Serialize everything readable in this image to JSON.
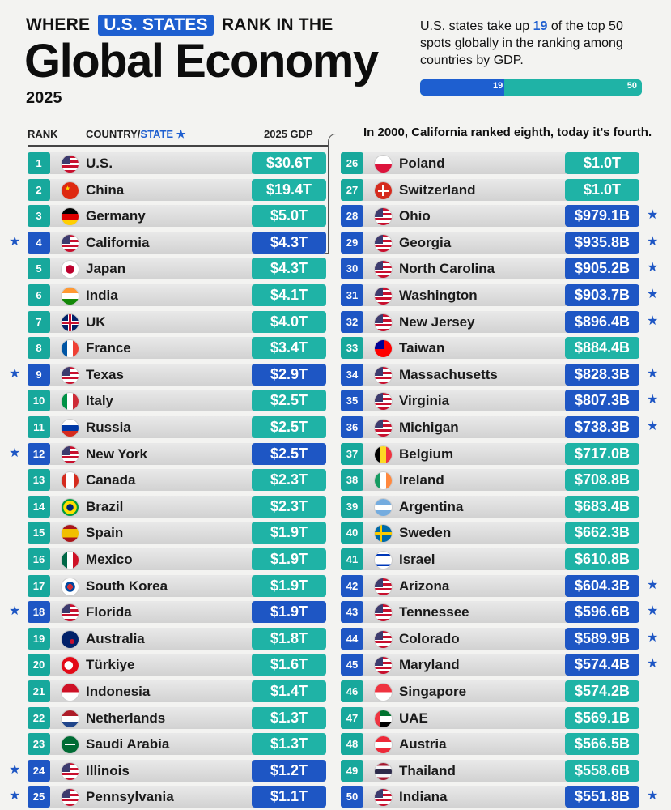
{
  "header": {
    "kicker_pre": "WHERE",
    "kicker_pill": "U.S. STATES",
    "kicker_post": "RANK IN THE",
    "title": "Global Economy",
    "year": "2025",
    "intro_pre": "U.S. states take up",
    "intro_highlight": "19",
    "intro_post": "of the top 50 spots globally in the ranking among countries by GDP.",
    "bar": {
      "states": 19,
      "total": 50,
      "states_label": "19",
      "total_label": "50"
    }
  },
  "columns": {
    "rank": "RANK",
    "country": "COUNTRY/",
    "state": "STATE",
    "star": "★",
    "gdp": "2025 GDP"
  },
  "callout": "In 2000, California ranked eighth, today it's fourth.",
  "star_symbol": "★",
  "colors": {
    "country": "#1fb3a6",
    "state": "#1e56c4",
    "accent": "#1e5fd0"
  },
  "chart_data": {
    "type": "table",
    "title": "Global Economy",
    "columns": [
      "RANK",
      "COUNTRY/STATE",
      "2025 GDP"
    ],
    "rows": [
      {
        "rank": "1",
        "name": "U.S.",
        "gdp": "$30.6T",
        "state": false,
        "flag": "us"
      },
      {
        "rank": "2",
        "name": "China",
        "gdp": "$19.4T",
        "state": false,
        "flag": "cn"
      },
      {
        "rank": "3",
        "name": "Germany",
        "gdp": "$5.0T",
        "state": false,
        "flag": "de"
      },
      {
        "rank": "4",
        "name": "California",
        "gdp": "$4.3T",
        "state": true,
        "flag": "us"
      },
      {
        "rank": "5",
        "name": "Japan",
        "gdp": "$4.3T",
        "state": false,
        "flag": "jp"
      },
      {
        "rank": "6",
        "name": "India",
        "gdp": "$4.1T",
        "state": false,
        "flag": "in"
      },
      {
        "rank": "7",
        "name": "UK",
        "gdp": "$4.0T",
        "state": false,
        "flag": "uk"
      },
      {
        "rank": "8",
        "name": "France",
        "gdp": "$3.4T",
        "state": false,
        "flag": "fr"
      },
      {
        "rank": "9",
        "name": "Texas",
        "gdp": "$2.9T",
        "state": true,
        "flag": "us"
      },
      {
        "rank": "10",
        "name": "Italy",
        "gdp": "$2.5T",
        "state": false,
        "flag": "it"
      },
      {
        "rank": "11",
        "name": "Russia",
        "gdp": "$2.5T",
        "state": false,
        "flag": "ru"
      },
      {
        "rank": "12",
        "name": "New York",
        "gdp": "$2.5T",
        "state": true,
        "flag": "us"
      },
      {
        "rank": "13",
        "name": "Canada",
        "gdp": "$2.3T",
        "state": false,
        "flag": "ca"
      },
      {
        "rank": "14",
        "name": "Brazil",
        "gdp": "$2.3T",
        "state": false,
        "flag": "br"
      },
      {
        "rank": "15",
        "name": "Spain",
        "gdp": "$1.9T",
        "state": false,
        "flag": "es"
      },
      {
        "rank": "16",
        "name": "Mexico",
        "gdp": "$1.9T",
        "state": false,
        "flag": "mx"
      },
      {
        "rank": "17",
        "name": "South Korea",
        "gdp": "$1.9T",
        "state": false,
        "flag": "kr"
      },
      {
        "rank": "18",
        "name": "Florida",
        "gdp": "$1.9T",
        "state": true,
        "flag": "us"
      },
      {
        "rank": "19",
        "name": "Australia",
        "gdp": "$1.8T",
        "state": false,
        "flag": "au"
      },
      {
        "rank": "20",
        "name": "Türkiye",
        "gdp": "$1.6T",
        "state": false,
        "flag": "tr"
      },
      {
        "rank": "21",
        "name": "Indonesia",
        "gdp": "$1.4T",
        "state": false,
        "flag": "id"
      },
      {
        "rank": "22",
        "name": "Netherlands",
        "gdp": "$1.3T",
        "state": false,
        "flag": "nl"
      },
      {
        "rank": "23",
        "name": "Saudi Arabia",
        "gdp": "$1.3T",
        "state": false,
        "flag": "sa"
      },
      {
        "rank": "24",
        "name": "Illinois",
        "gdp": "$1.2T",
        "state": true,
        "flag": "us"
      },
      {
        "rank": "25",
        "name": "Pennsylvania",
        "gdp": "$1.1T",
        "state": true,
        "flag": "us"
      },
      {
        "rank": "26",
        "name": "Poland",
        "gdp": "$1.0T",
        "state": false,
        "flag": "pl"
      },
      {
        "rank": "27",
        "name": "Switzerland",
        "gdp": "$1.0T",
        "state": false,
        "flag": "ch"
      },
      {
        "rank": "28",
        "name": "Ohio",
        "gdp": "$979.1B",
        "state": true,
        "flag": "us"
      },
      {
        "rank": "29",
        "name": "Georgia",
        "gdp": "$935.8B",
        "state": true,
        "flag": "us"
      },
      {
        "rank": "30",
        "name": "North Carolina",
        "gdp": "$905.2B",
        "state": true,
        "flag": "us"
      },
      {
        "rank": "31",
        "name": "Washington",
        "gdp": "$903.7B",
        "state": true,
        "flag": "us"
      },
      {
        "rank": "32",
        "name": "New Jersey",
        "gdp": "$896.4B",
        "state": true,
        "flag": "us"
      },
      {
        "rank": "33",
        "name": "Taiwan",
        "gdp": "$884.4B",
        "state": false,
        "flag": "tw"
      },
      {
        "rank": "34",
        "name": "Massachusetts",
        "gdp": "$828.3B",
        "state": true,
        "flag": "us"
      },
      {
        "rank": "35",
        "name": "Virginia",
        "gdp": "$807.3B",
        "state": true,
        "flag": "us"
      },
      {
        "rank": "36",
        "name": "Michigan",
        "gdp": "$738.3B",
        "state": true,
        "flag": "us"
      },
      {
        "rank": "37",
        "name": "Belgium",
        "gdp": "$717.0B",
        "state": false,
        "flag": "be"
      },
      {
        "rank": "38",
        "name": "Ireland",
        "gdp": "$708.8B",
        "state": false,
        "flag": "ie"
      },
      {
        "rank": "39",
        "name": "Argentina",
        "gdp": "$683.4B",
        "state": false,
        "flag": "ar"
      },
      {
        "rank": "40",
        "name": "Sweden",
        "gdp": "$662.3B",
        "state": false,
        "flag": "se"
      },
      {
        "rank": "41",
        "name": "Israel",
        "gdp": "$610.8B",
        "state": false,
        "flag": "il"
      },
      {
        "rank": "42",
        "name": "Arizona",
        "gdp": "$604.3B",
        "state": true,
        "flag": "us"
      },
      {
        "rank": "43",
        "name": "Tennessee",
        "gdp": "$596.6B",
        "state": true,
        "flag": "us"
      },
      {
        "rank": "44",
        "name": "Colorado",
        "gdp": "$589.9B",
        "state": true,
        "flag": "us"
      },
      {
        "rank": "45",
        "name": "Maryland",
        "gdp": "$574.4B",
        "state": true,
        "flag": "us"
      },
      {
        "rank": "46",
        "name": "Singapore",
        "gdp": "$574.2B",
        "state": false,
        "flag": "sg"
      },
      {
        "rank": "47",
        "name": "UAE",
        "gdp": "$569.1B",
        "state": false,
        "flag": "ae"
      },
      {
        "rank": "48",
        "name": "Austria",
        "gdp": "$566.5B",
        "state": false,
        "flag": "at"
      },
      {
        "rank": "49",
        "name": "Thailand",
        "gdp": "$558.6B",
        "state": false,
        "flag": "th"
      },
      {
        "rank": "50",
        "name": "Indiana",
        "gdp": "$551.8B",
        "state": true,
        "flag": "us"
      }
    ]
  }
}
